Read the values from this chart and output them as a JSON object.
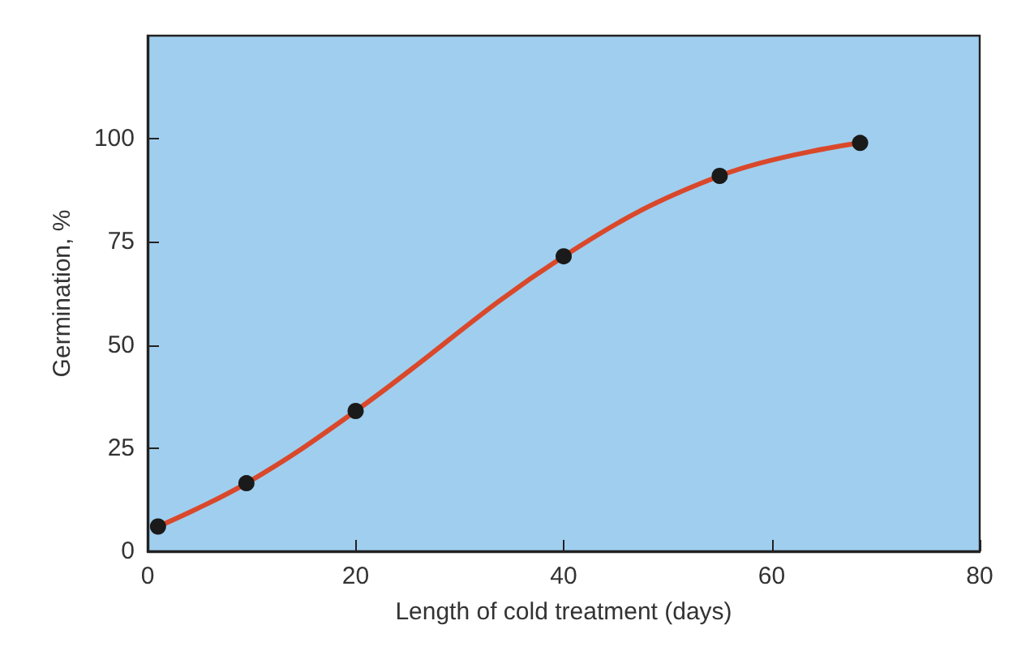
{
  "chart_data": {
    "type": "line",
    "xlabel": "Length of cold treatment (days)",
    "ylabel": "Germination, %",
    "x": [
      1,
      9.5,
      20,
      40,
      55,
      68.5
    ],
    "series": [
      {
        "color": "#d9482b",
        "values": [
          6,
          16.5,
          34,
          71.5,
          91,
          99
        ]
      },
      {
        "type": "scatter",
        "color": "#1a1a1a",
        "marker": "circle",
        "values": [
          6,
          16.5,
          34,
          71.5,
          91,
          99
        ]
      }
    ],
    "xlim": [
      0,
      80
    ],
    "xticks": [
      0,
      20,
      40,
      60,
      80
    ],
    "ylim": [
      0,
      125
    ],
    "yticks": [
      0,
      25,
      50,
      75,
      100
    ],
    "grid": false
  }
}
